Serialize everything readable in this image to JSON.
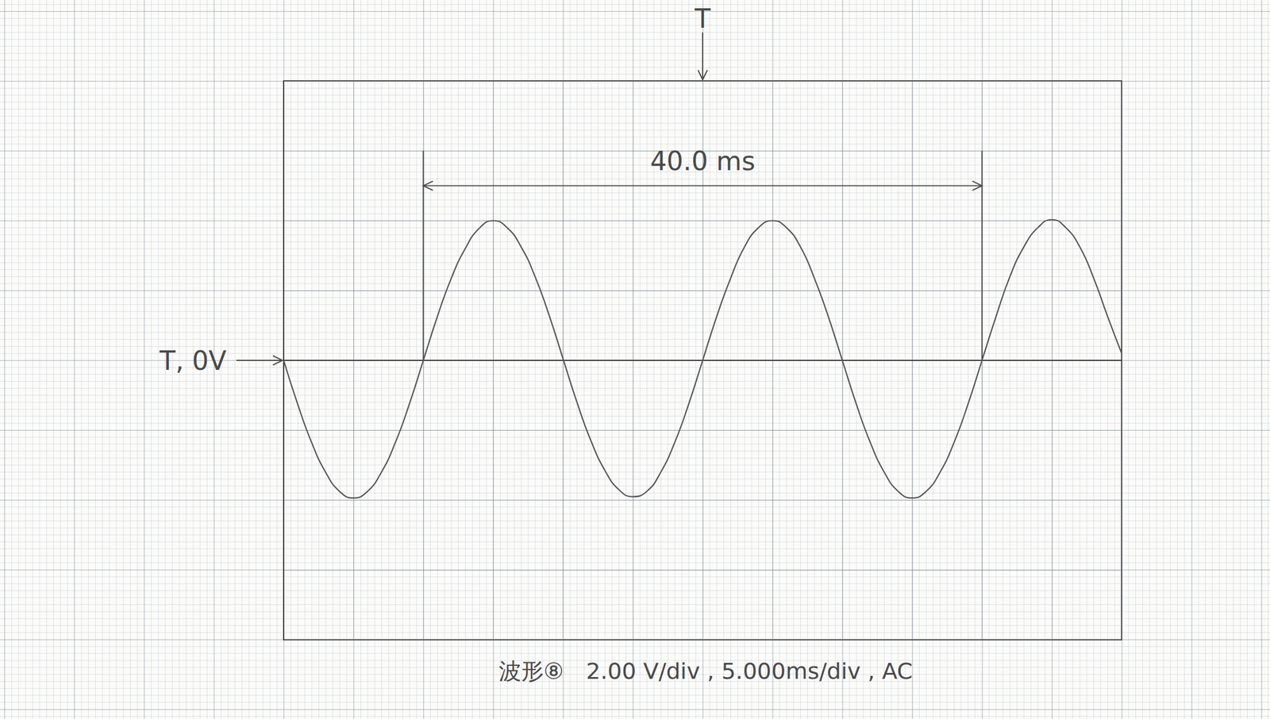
{
  "chart_data": {
    "type": "line",
    "title": "波形⑧　2.00 V/div , 5.000ms/div , AC",
    "x": [
      -30,
      -29,
      -28,
      -27,
      -26,
      -25,
      -24,
      -23,
      -22,
      -21,
      -20,
      -19,
      -18,
      -17,
      -16,
      -15,
      -14,
      -13,
      -12,
      -11,
      -10,
      -9,
      -8,
      -7,
      -6,
      -5,
      -4,
      -3,
      -2,
      -1,
      0,
      1,
      2,
      3,
      4,
      5,
      6,
      7,
      8,
      9,
      10,
      11,
      12,
      13,
      14,
      15,
      16,
      17,
      18,
      19,
      20,
      21,
      22,
      23,
      24,
      25,
      26,
      27,
      28,
      29,
      30
    ],
    "values": [
      0,
      -1.25,
      -2.35,
      -3.2,
      -3.75,
      -3.94,
      -3.75,
      -3.2,
      -2.35,
      -1.25,
      0,
      1.25,
      2.35,
      3.2,
      3.78,
      4.0,
      3.8,
      3.25,
      2.4,
      1.3,
      0.05,
      -1.2,
      -2.3,
      -3.15,
      -3.7,
      -3.9,
      -3.75,
      -3.2,
      -2.35,
      -1.25,
      0,
      1.25,
      2.35,
      3.25,
      3.8,
      4.0,
      3.8,
      3.25,
      2.35,
      1.25,
      0,
      -1.25,
      -2.35,
      -3.2,
      -3.75,
      -3.94,
      -3.75,
      -3.2,
      -2.35,
      -1.25,
      0,
      1.25,
      2.4,
      3.25,
      3.8,
      4.03,
      3.8,
      3.25,
      2.35,
      1.25,
      0.2
    ],
    "color": "#555555",
    "xlim": [
      -30,
      30
    ],
    "xticks": [
      -30,
      -25,
      -20,
      -15,
      -10,
      -5,
      0,
      5,
      10,
      15,
      20,
      25,
      30
    ],
    "ylim": [
      -8,
      8
    ],
    "yticks": [
      -8,
      -6,
      -4,
      -2,
      0,
      2,
      4,
      6,
      8
    ],
    "grid": true,
    "tick_labels": false,
    "annotations": {
      "dimension": {
        "text": "40.0 ms",
        "x_start": -20,
        "x_end": 20,
        "y": 5,
        "extension_y": [
          0,
          6
        ]
      },
      "trigger_time": {
        "text": "T",
        "x": 0
      },
      "trigger_level": {
        "text": "T, 0V",
        "y": 0
      }
    }
  }
}
